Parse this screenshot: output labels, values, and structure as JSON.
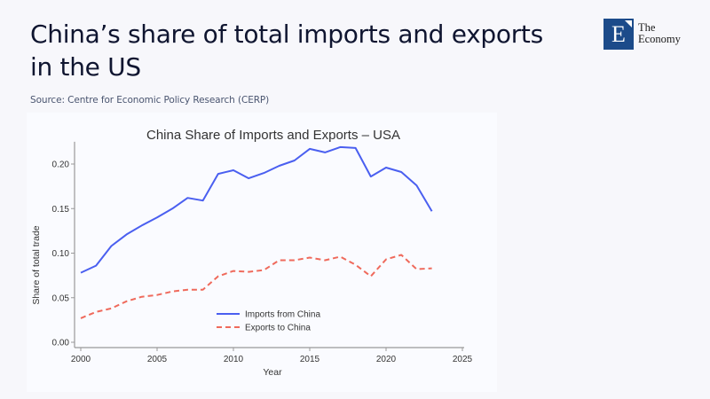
{
  "page": {
    "title": "China’s share of total imports and exports in the US",
    "source": "Source: Centre for Economic Policy Research (CERP)"
  },
  "logo": {
    "letter": "E",
    "line1": "The",
    "line2": "Economy",
    "brand_color": "#1c4b8a"
  },
  "chart_data": {
    "type": "line",
    "title": "China Share of Imports and Exports  –  USA",
    "xlabel": "Year",
    "ylabel": "Share of total trade",
    "xlim": [
      2000,
      2025
    ],
    "ylim": [
      0,
      0.225
    ],
    "xticks": [
      2000,
      2005,
      2010,
      2015,
      2020,
      2025
    ],
    "xtick_labels": [
      "2000",
      "2005",
      "2010",
      "2015",
      "2020",
      "2025"
    ],
    "yticks": [
      0,
      0.05,
      0.1,
      0.15,
      0.2
    ],
    "ytick_labels": [
      "0.00",
      "0.05",
      "0.10",
      "0.15",
      "0.20"
    ],
    "grid": false,
    "legend_position": "bottom-center",
    "x": [
      2000,
      2001,
      2002,
      2003,
      2004,
      2005,
      2006,
      2007,
      2008,
      2009,
      2010,
      2011,
      2012,
      2013,
      2014,
      2015,
      2016,
      2017,
      2018,
      2019,
      2020,
      2021,
      2022,
      2023
    ],
    "series": [
      {
        "name": "Imports from China",
        "color": "#4a5ff0",
        "style": "solid",
        "values": [
          0.078,
          0.086,
          0.108,
          0.121,
          0.131,
          0.14,
          0.15,
          0.162,
          0.159,
          0.189,
          0.193,
          0.184,
          0.19,
          0.198,
          0.204,
          0.217,
          0.213,
          0.219,
          0.218,
          0.186,
          0.196,
          0.191,
          0.176,
          0.147
        ]
      },
      {
        "name": "Exports to China",
        "color": "#ef6a5c",
        "style": "dashed",
        "values": [
          0.027,
          0.034,
          0.038,
          0.046,
          0.051,
          0.053,
          0.057,
          0.059,
          0.059,
          0.074,
          0.08,
          0.079,
          0.081,
          0.092,
          0.092,
          0.095,
          0.092,
          0.096,
          0.087,
          0.074,
          0.093,
          0.098,
          0.082,
          0.083
        ]
      }
    ]
  }
}
